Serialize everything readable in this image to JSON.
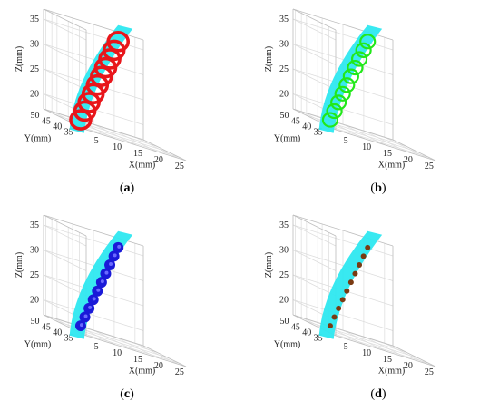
{
  "chart_data": [
    {
      "type": "scatter",
      "panel_label": "a",
      "xlabel": "X(mm)",
      "ylabel": "Y(mm)",
      "zlabel": "Z(mm)",
      "x_ticks": [
        "5",
        "10",
        "15",
        "20",
        "25"
      ],
      "y_ticks": [
        "35",
        "40",
        "45",
        "50"
      ],
      "z_ticks": [
        "20",
        "25",
        "30",
        "35"
      ],
      "marker": "ring",
      "marker_color": "#e8161b",
      "channel_color": "#2ee8f0",
      "points": [
        {
          "x": 6,
          "y": 40,
          "z": 18
        },
        {
          "x": 7,
          "y": 40,
          "z": 20
        },
        {
          "x": 8,
          "y": 40,
          "z": 22
        },
        {
          "x": 9,
          "y": 40,
          "z": 24
        },
        {
          "x": 10,
          "y": 40,
          "z": 26
        },
        {
          "x": 11,
          "y": 40,
          "z": 28
        },
        {
          "x": 12,
          "y": 40,
          "z": 30
        },
        {
          "x": 13,
          "y": 40,
          "z": 32
        },
        {
          "x": 14,
          "y": 40,
          "z": 34
        },
        {
          "x": 15,
          "y": 40,
          "z": 36
        }
      ]
    },
    {
      "type": "scatter",
      "panel_label": "b",
      "xlabel": "X(mm)",
      "ylabel": "Y(mm)",
      "zlabel": "Z(mm)",
      "x_ticks": [
        "5",
        "10",
        "15",
        "20",
        "25"
      ],
      "y_ticks": [
        "35",
        "40",
        "45",
        "50"
      ],
      "z_ticks": [
        "20",
        "25",
        "30",
        "35"
      ],
      "marker": "ring-thin",
      "marker_color": "#22e81a",
      "channel_color": "#2ee8f0",
      "points": [
        {
          "x": 6,
          "y": 40,
          "z": 18
        },
        {
          "x": 7,
          "y": 40,
          "z": 20
        },
        {
          "x": 8,
          "y": 40,
          "z": 22
        },
        {
          "x": 9,
          "y": 40,
          "z": 24
        },
        {
          "x": 10,
          "y": 40,
          "z": 26
        },
        {
          "x": 11,
          "y": 40,
          "z": 28
        },
        {
          "x": 12,
          "y": 40,
          "z": 30
        },
        {
          "x": 13,
          "y": 40,
          "z": 32
        },
        {
          "x": 14,
          "y": 40,
          "z": 34
        },
        {
          "x": 15,
          "y": 40,
          "z": 36
        }
      ]
    },
    {
      "type": "scatter",
      "panel_label": "c",
      "xlabel": "X(mm)",
      "ylabel": "Y(mm)",
      "zlabel": "Z(mm)",
      "x_ticks": [
        "5",
        "10",
        "15",
        "20",
        "25"
      ],
      "y_ticks": [
        "35",
        "40",
        "45",
        "50"
      ],
      "z_ticks": [
        "20",
        "25",
        "30",
        "35"
      ],
      "marker": "disc",
      "marker_color": "#1a1ad8",
      "channel_color": "#2ee8f0",
      "points": [
        {
          "x": 6,
          "y": 40,
          "z": 18
        },
        {
          "x": 7,
          "y": 40,
          "z": 20
        },
        {
          "x": 8,
          "y": 40,
          "z": 22
        },
        {
          "x": 9,
          "y": 40,
          "z": 24
        },
        {
          "x": 10,
          "y": 40,
          "z": 26
        },
        {
          "x": 11,
          "y": 40,
          "z": 28
        },
        {
          "x": 12,
          "y": 40,
          "z": 30
        },
        {
          "x": 13,
          "y": 40,
          "z": 32
        },
        {
          "x": 14,
          "y": 40,
          "z": 34
        },
        {
          "x": 15,
          "y": 40,
          "z": 36
        }
      ]
    },
    {
      "type": "scatter",
      "panel_label": "d",
      "xlabel": "X(mm)",
      "ylabel": "Y(mm)",
      "zlabel": "Z(mm)",
      "x_ticks": [
        "5",
        "10",
        "15",
        "20",
        "25"
      ],
      "y_ticks": [
        "35",
        "40",
        "45",
        "50"
      ],
      "z_ticks": [
        "20",
        "25",
        "30",
        "35"
      ],
      "marker": "dot",
      "marker_color": "#7a3a12",
      "channel_color": "#2ee8f0",
      "points": [
        {
          "x": 6,
          "y": 40,
          "z": 18
        },
        {
          "x": 7,
          "y": 40,
          "z": 20
        },
        {
          "x": 8,
          "y": 40,
          "z": 22
        },
        {
          "x": 9,
          "y": 40,
          "z": 24
        },
        {
          "x": 10,
          "y": 40,
          "z": 26
        },
        {
          "x": 11,
          "y": 40,
          "z": 28
        },
        {
          "x": 12,
          "y": 40,
          "z": 30
        },
        {
          "x": 13,
          "y": 40,
          "z": 32
        },
        {
          "x": 14,
          "y": 40,
          "z": 34
        },
        {
          "x": 15,
          "y": 40,
          "z": 36
        }
      ]
    }
  ]
}
